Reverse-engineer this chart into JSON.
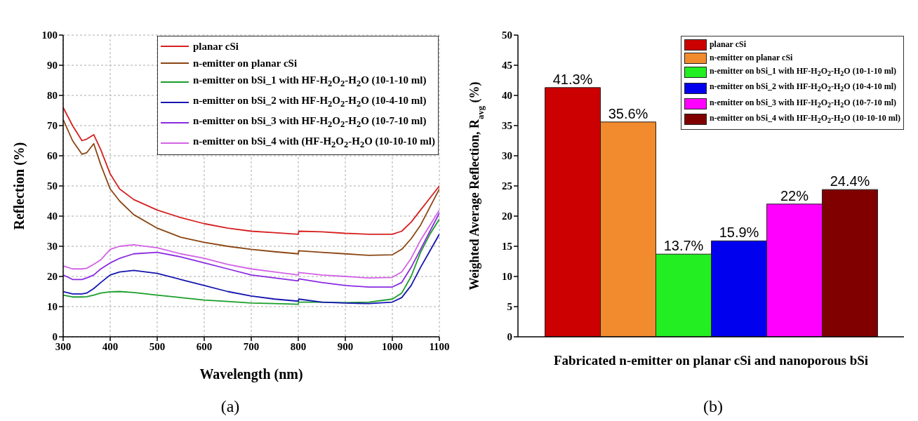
{
  "chart_data": [
    {
      "type": "line",
      "xlabel": "Wavelength (nm)",
      "ylabel": "Reflection (%)",
      "annotations": [
        "(a)"
      ],
      "x": [
        300,
        320,
        340,
        350,
        365,
        380,
        400,
        420,
        450,
        500,
        550,
        600,
        650,
        700,
        750,
        800,
        801,
        850,
        900,
        950,
        1000,
        1020,
        1040,
        1060,
        1080,
        1100
      ],
      "xlim": [
        300,
        1100
      ],
      "xticks": [
        300,
        400,
        500,
        600,
        700,
        800,
        900,
        1000,
        1100
      ],
      "ylim": [
        0,
        100
      ],
      "yticks": [
        0,
        10,
        20,
        30,
        40,
        50,
        60,
        70,
        80,
        90,
        100
      ],
      "grid": true,
      "legend": "top right",
      "line_style": "solid",
      "marker": "none",
      "series": [
        {
          "name": "planar cSi",
          "color": "#d62020",
          "values": [
            76,
            70,
            65,
            65.5,
            67,
            62,
            54,
            49,
            45.5,
            42,
            39.5,
            37.5,
            36,
            35,
            34.5,
            34,
            35,
            34.8,
            34.3,
            34,
            34,
            35,
            38,
            42,
            46,
            50
          ]
        },
        {
          "name": "n-emitter on planar cSi",
          "color": "#8b4513",
          "values": [
            72,
            65,
            60.5,
            61,
            64,
            57,
            49,
            45,
            40.5,
            36,
            33,
            31.3,
            30,
            29,
            28.2,
            27.5,
            28.5,
            28,
            27.5,
            27,
            27.2,
            29,
            32.5,
            37,
            43,
            49
          ]
        },
        {
          "name": "n-emitter on bSi_1 with HF-H$_{2}$O$_{2}$-H$_{2}$O (10-1-10 ml)",
          "color": "#1a9e2a",
          "values": [
            13.8,
            13.2,
            13.2,
            13.3,
            13.8,
            14.5,
            14.9,
            15,
            14.7,
            13.8,
            13,
            12.2,
            11.7,
            11.2,
            11,
            10.8,
            11.5,
            11.5,
            11.3,
            11.5,
            12.5,
            14.5,
            20,
            28,
            34,
            39
          ]
        },
        {
          "name": "n-emitter on bSi_2 with HF-H$_{2}$O$_{2}$-H$_{2}$O (10-4-10 ml)",
          "color": "#1515b0",
          "values": [
            15,
            14.2,
            14.2,
            14.5,
            16,
            18,
            20.5,
            21.5,
            22,
            21,
            19,
            17,
            15,
            13.5,
            12.5,
            11.8,
            12.5,
            11.5,
            11.2,
            11,
            11.5,
            13,
            17,
            23,
            28.5,
            34
          ]
        },
        {
          "name": "n-emitter on bSi_3 with HF-H$_{2}$O$_{2}$-H$_{2}$O (10-7-10 ml)",
          "color": "#8a2be2",
          "values": [
            20.5,
            19,
            19,
            19.5,
            20.5,
            22.5,
            24.5,
            26,
            27.5,
            28,
            26.5,
            24.5,
            22.5,
            20.5,
            19.5,
            18.5,
            19.2,
            18,
            17,
            16.5,
            16.5,
            18,
            23,
            29,
            35,
            41
          ]
        },
        {
          "name": "n-emitter on bSi_4 with (HF-H$_{2}$O$_{2}$-H$_{2}$O (10-10-10 ml)",
          "color": "#d264e6",
          "values": [
            23.5,
            22.5,
            22.5,
            22.7,
            24,
            25.5,
            29,
            30,
            30.5,
            29.5,
            27.5,
            26,
            24,
            22.5,
            21.5,
            20.5,
            21.3,
            20.5,
            20,
            19.5,
            19.7,
            21.5,
            26,
            32,
            37,
            42
          ]
        }
      ]
    },
    {
      "type": "bar",
      "xlabel": "Fabricated n-emitter on planar cSi and nanoporous bSi",
      "ylabel": "Weighted Average Reflection, R$_{avg}$ (%)",
      "annotations": [
        "(b)"
      ],
      "categories": [
        null
      ],
      "ylim": [
        0,
        50
      ],
      "yticks": [
        0,
        5,
        10,
        15,
        20,
        25,
        30,
        35,
        40,
        45,
        50
      ],
      "legend": "top right",
      "series": [
        {
          "name": "planar cSi",
          "color": "#cc0000",
          "values": [
            41.3
          ],
          "value_labels": [
            "41.3%"
          ]
        },
        {
          "name": "n-emitter on planar cSi",
          "color": "#f28a2e",
          "values": [
            35.6
          ],
          "value_labels": [
            "35.6%"
          ]
        },
        {
          "name": "n-emitter on bSi_1 with HF-H$_{2}$O$_{2}$-H$_{2}$O (10-1-10 ml)",
          "color": "#22ee22",
          "values": [
            13.7
          ],
          "value_labels": [
            "13.7%"
          ]
        },
        {
          "name": "n-emitter on bSi_2 with HF-H$_{2}$O$_{2}$-H$_{2}$O (10-4-10 ml)",
          "color": "#0000ee",
          "values": [
            15.9
          ],
          "value_labels": [
            "15.9%"
          ]
        },
        {
          "name": "n-emitter on bSi_3 with HF-H$_{2}$O$_{2}$-H$_{2}$O (10-7-10 ml)",
          "color": "#ff00ff",
          "values": [
            22
          ],
          "value_labels": [
            "22%"
          ]
        },
        {
          "name": "n-emitter on bSi_4 with HF-H$_{2}$O$_{2}$-H$_{2}$O (10-10-10 ml)",
          "color": "#800000",
          "values": [
            24.4
          ],
          "value_labels": [
            "24.4%"
          ]
        }
      ]
    }
  ]
}
